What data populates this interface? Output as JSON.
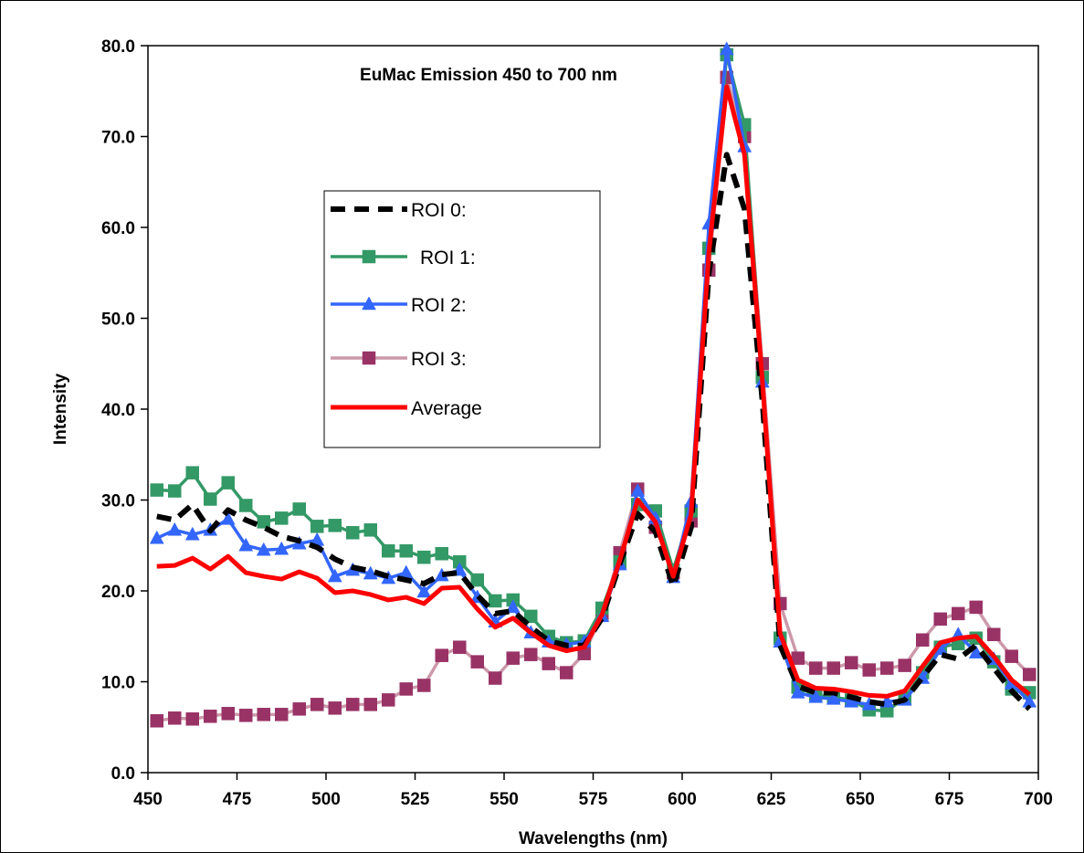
{
  "chart_data": {
    "type": "line",
    "title": "EuMac Emission 450 to 700 nm",
    "xlabel": "Wavelengths (nm)",
    "ylabel": "Intensity",
    "xlim": [
      450,
      700
    ],
    "ylim": [
      0,
      80
    ],
    "xticks": [
      "450",
      "475",
      "500",
      "525",
      "550",
      "575",
      "600",
      "625",
      "650",
      "675",
      "700"
    ],
    "yticks": [
      "0.0",
      "10.0",
      "20.0",
      "30.0",
      "40.0",
      "50.0",
      "60.0",
      "70.0",
      "80.0"
    ],
    "x": [
      452.5,
      457.5,
      462.5,
      467.5,
      472.5,
      477.5,
      482.5,
      487.5,
      492.5,
      497.5,
      502.5,
      507.5,
      512.5,
      517.5,
      522.5,
      527.5,
      532.5,
      537.5,
      542.5,
      547.5,
      552.5,
      557.5,
      562.5,
      567.5,
      572.5,
      577.5,
      582.5,
      587.5,
      592.5,
      597.5,
      602.5,
      607.5,
      612.5,
      617.5,
      622.5,
      627.5,
      632.5,
      637.5,
      642.5,
      647.5,
      652.5,
      657.5,
      662.5,
      667.5,
      672.5,
      677.5,
      682.5,
      687.5,
      692.5,
      697.5
    ],
    "legend_position": "upper-left",
    "grid": false,
    "series": [
      {
        "name": "ROI 0:",
        "color": "#000000",
        "style": "dashed",
        "marker": "none",
        "values": [
          28.2,
          27.8,
          29.5,
          26.6,
          28.9,
          27.8,
          27.0,
          26.0,
          25.5,
          24.8,
          23.5,
          22.6,
          22.2,
          21.6,
          21.2,
          20.8,
          21.8,
          22.0,
          19.5,
          17.5,
          17.8,
          16.0,
          14.5,
          14.0,
          14.0,
          17.0,
          23.0,
          28.5,
          26.5,
          20.5,
          27.0,
          55.0,
          68.0,
          62.0,
          41.0,
          14.0,
          9.5,
          8.8,
          8.8,
          8.3,
          7.8,
          7.5,
          8.0,
          10.5,
          13.0,
          12.5,
          14.0,
          11.5,
          9.0,
          7.0
        ]
      },
      {
        "name": "ROI 1:",
        "color": "#339966",
        "style": "solid",
        "marker": "square",
        "values": [
          31.1,
          31.0,
          33.0,
          30.1,
          31.9,
          29.4,
          27.6,
          28.0,
          29.0,
          27.1,
          27.2,
          26.4,
          26.7,
          24.4,
          24.4,
          23.7,
          24.1,
          23.2,
          21.2,
          18.9,
          19.0,
          17.2,
          15.0,
          14.3,
          14.5,
          18.1,
          23.2,
          29.5,
          28.8,
          22.3,
          28.8,
          57.7,
          79.0,
          71.3,
          43.5,
          14.8,
          9.4,
          8.5,
          8.3,
          8.0,
          6.9,
          6.8,
          8.2,
          11.0,
          13.8,
          14.2,
          14.8,
          12.2,
          9.2,
          8.8
        ]
      },
      {
        "name": "ROI 2:",
        "color": "#3366ff",
        "style": "solid",
        "marker": "triangle",
        "values": [
          25.8,
          26.7,
          26.2,
          26.7,
          27.9,
          25.0,
          24.5,
          24.6,
          25.2,
          25.6,
          21.6,
          22.3,
          21.9,
          21.4,
          22.0,
          19.9,
          21.7,
          22.3,
          19.3,
          16.6,
          18.2,
          15.4,
          14.4,
          14.1,
          14.4,
          17.2,
          22.9,
          31.0,
          28.0,
          21.5,
          29.8,
          60.4,
          79.6,
          68.9,
          43.0,
          14.4,
          8.8,
          8.3,
          8.1,
          7.8,
          7.5,
          7.8,
          8.0,
          10.4,
          13.6,
          15.2,
          13.2,
          12.5,
          9.8,
          7.8
        ]
      },
      {
        "name": "ROI 3:",
        "color": "#cc99aa",
        "marker_color": "#993366",
        "style": "solid",
        "marker": "square",
        "values": [
          5.7,
          6.0,
          5.9,
          6.2,
          6.5,
          6.3,
          6.4,
          6.4,
          7.0,
          7.5,
          7.1,
          7.5,
          7.5,
          8.0,
          9.2,
          9.6,
          12.9,
          13.8,
          12.2,
          10.4,
          12.6,
          13.0,
          12.0,
          11.0,
          13.1,
          17.4,
          24.2,
          31.2,
          27.0,
          22.0,
          27.7,
          55.3,
          76.5,
          70.0,
          45.0,
          18.6,
          12.6,
          11.5,
          11.5,
          12.1,
          11.3,
          11.5,
          11.8,
          14.6,
          16.9,
          17.5,
          18.2,
          15.2,
          12.8,
          10.8
        ]
      },
      {
        "name": "Average",
        "color": "#ff0000",
        "style": "solid",
        "marker": "none",
        "values": [
          22.7,
          22.8,
          23.6,
          22.4,
          23.8,
          22.0,
          21.6,
          21.3,
          22.1,
          21.4,
          19.8,
          20.0,
          19.6,
          19.0,
          19.3,
          18.6,
          20.3,
          20.4,
          18.0,
          16.0,
          17.0,
          15.4,
          14.0,
          13.4,
          13.8,
          17.4,
          23.4,
          30.0,
          27.6,
          21.6,
          28.4,
          57.3,
          75.5,
          68.0,
          43.2,
          15.3,
          10.2,
          9.3,
          9.2,
          8.9,
          8.5,
          8.4,
          9.0,
          11.7,
          14.3,
          14.8,
          15.0,
          12.8,
          10.2,
          8.6
        ]
      }
    ]
  }
}
